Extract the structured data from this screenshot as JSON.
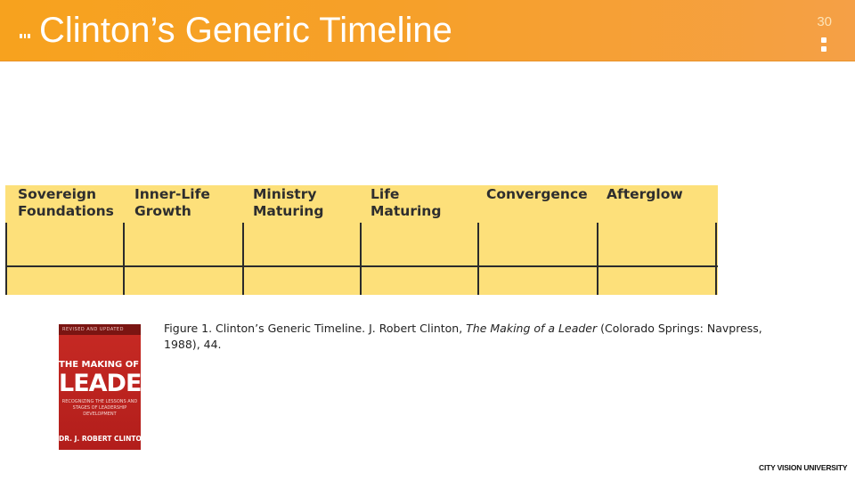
{
  "slide": {
    "title": "Clinton’s Generic Timeline",
    "page_number": "30"
  },
  "timeline": {
    "phases": [
      {
        "label": "Sovereign\nFoundations"
      },
      {
        "label": "Inner-Life\nGrowth"
      },
      {
        "label": "Ministry\nMaturing"
      },
      {
        "label": "Life\nMaturing"
      },
      {
        "label": "Convergence"
      },
      {
        "label": "Afterglow"
      }
    ],
    "colors": {
      "fill": "#fde07a",
      "lines": "#2b2b2b",
      "header": "#f7a21e"
    }
  },
  "book_cover": {
    "top_banner": "REVISED AND UPDATED",
    "title_line1": "THE MAKING OF A",
    "title_line2": "LEADER",
    "subtitle": "RECOGNIZING THE LESSONS AND STAGES OF LEADERSHIP DEVELOPMENT",
    "author": "DR. J. ROBERT CLINTON"
  },
  "caption": {
    "prefix": "Figure 1. Clinton’s Generic Timeline. J. Robert Clinton, ",
    "book_title": "The Making of a Leader",
    "suffix": " (Colorado Springs: Navpress, 1988), 44."
  },
  "footer": {
    "logo_text": "CITY VISION UNIVERSITY"
  }
}
